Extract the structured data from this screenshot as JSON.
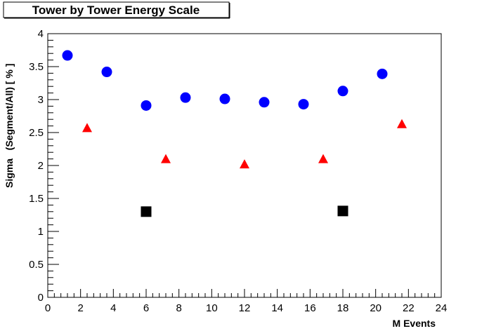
{
  "chart_data": {
    "type": "scatter",
    "title": "Tower by Tower Energy Scale",
    "xlabel": "M Events",
    "ylabel": "Sigma   (Segment/All) [ % ]",
    "xlim": [
      0,
      24
    ],
    "ylim": [
      0,
      4
    ],
    "x_ticks": [
      0,
      2,
      4,
      6,
      8,
      10,
      12,
      14,
      16,
      18,
      20,
      22,
      24
    ],
    "y_ticks": [
      0,
      0.5,
      1,
      1.5,
      2,
      2.5,
      3,
      3.5,
      4
    ],
    "x_tick_labels": [
      "0",
      "2",
      "4",
      "6",
      "8",
      "10",
      "12",
      "14",
      "16",
      "18",
      "20",
      "22",
      "24"
    ],
    "y_tick_labels": [
      "0",
      "0.5",
      "1",
      "1.5",
      "2",
      "2.5",
      "3",
      "3.5",
      "4"
    ],
    "grid": false,
    "series": [
      {
        "marker": "circle",
        "color": "#0000ff",
        "x": [
          1.2,
          3.6,
          6.0,
          8.4,
          10.8,
          13.2,
          15.6,
          18.0,
          20.4
        ],
        "y": [
          3.67,
          3.42,
          2.91,
          3.03,
          3.01,
          2.96,
          2.93,
          3.13,
          3.39
        ]
      },
      {
        "marker": "triangle",
        "color": "#ff0000",
        "x": [
          2.4,
          7.2,
          12.0,
          16.8,
          21.6
        ],
        "y": [
          2.57,
          2.1,
          2.02,
          2.1,
          2.63
        ]
      },
      {
        "marker": "square",
        "color": "#000000",
        "x": [
          6.0,
          18.0
        ],
        "y": [
          1.3,
          1.31
        ]
      }
    ]
  }
}
